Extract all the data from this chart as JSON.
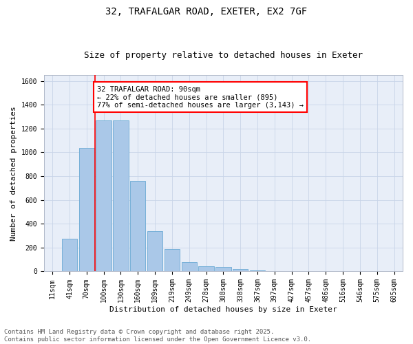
{
  "title_line1": "32, TRAFALGAR ROAD, EXETER, EX2 7GF",
  "title_line2": "Size of property relative to detached houses in Exeter",
  "xlabel": "Distribution of detached houses by size in Exeter",
  "ylabel": "Number of detached properties",
  "categories": [
    "11sqm",
    "41sqm",
    "70sqm",
    "100sqm",
    "130sqm",
    "160sqm",
    "189sqm",
    "219sqm",
    "249sqm",
    "278sqm",
    "308sqm",
    "338sqm",
    "367sqm",
    "397sqm",
    "427sqm",
    "457sqm",
    "486sqm",
    "516sqm",
    "546sqm",
    "575sqm",
    "605sqm"
  ],
  "values": [
    5,
    275,
    1040,
    1270,
    1270,
    760,
    340,
    190,
    80,
    45,
    35,
    20,
    10,
    5,
    0,
    5,
    0,
    0,
    0,
    0,
    0
  ],
  "bar_color": "#aac8e8",
  "bar_edge_color": "#6aaad4",
  "grid_color": "#c8d4e8",
  "background_color": "#e8eef8",
  "annotation_text_line1": "32 TRAFALGAR ROAD: 90sqm",
  "annotation_text_line2": "← 22% of detached houses are smaller (895)",
  "annotation_text_line3": "77% of semi-detached houses are larger (3,143) →",
  "red_line_x": 2.5,
  "ylim": [
    0,
    1650
  ],
  "yticks": [
    0,
    200,
    400,
    600,
    800,
    1000,
    1200,
    1400,
    1600
  ],
  "footer_line1": "Contains HM Land Registry data © Crown copyright and database right 2025.",
  "footer_line2": "Contains public sector information licensed under the Open Government Licence v3.0.",
  "title_fontsize": 10,
  "subtitle_fontsize": 9,
  "axis_label_fontsize": 8,
  "tick_fontsize": 7,
  "annotation_fontsize": 7.5,
  "footer_fontsize": 6.5
}
